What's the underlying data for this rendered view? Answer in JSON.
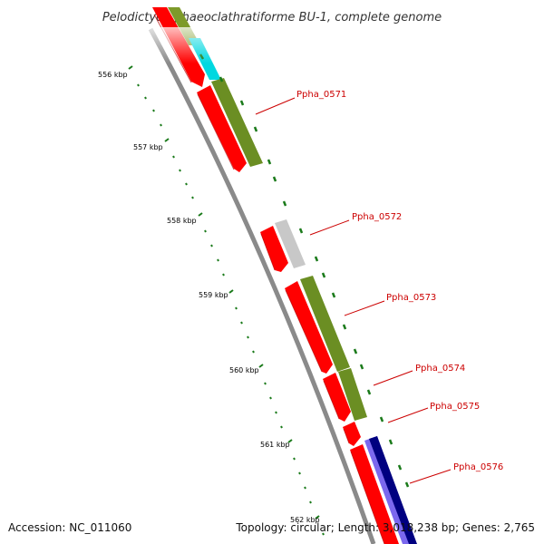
{
  "title": "Pelodictyon phaeoclathratiforme BU-1, complete genome",
  "accession": "Accession: NC_011060",
  "summary": "Topology: circular; Length: 3,018,238 bp; Genes: 2,765",
  "scale_labels": [
    "556 kbp",
    "557 kbp",
    "558 kbp",
    "559 kbp",
    "560 kbp",
    "561 kbp",
    "562 kbp"
  ],
  "genes": [
    {
      "label": "Ppha_0571"
    },
    {
      "label": "Ppha_0572"
    },
    {
      "label": "Ppha_0573"
    },
    {
      "label": "Ppha_0574"
    },
    {
      "label": "Ppha_0575"
    },
    {
      "label": "Ppha_0576"
    }
  ],
  "colors": {
    "cds": "#ff0000",
    "olive": "#6b8e23",
    "cyan": "#00d8e0",
    "gray": "#c8c8c8",
    "navy": "#000080",
    "lavender": "#7b68ee",
    "backbone": "#888888",
    "tick": "#1a7a1a",
    "label": "#cc0000"
  }
}
